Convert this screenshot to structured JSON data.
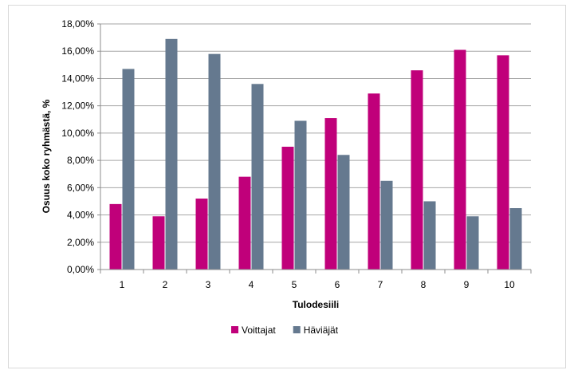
{
  "chart_data": {
    "type": "bar",
    "title": "",
    "xlabel": "Tulodesiili",
    "ylabel": "Osuus koko ryhmästä, %",
    "categories": [
      "1",
      "2",
      "3",
      "4",
      "5",
      "6",
      "7",
      "8",
      "9",
      "10"
    ],
    "series": [
      {
        "name": "Voittajat",
        "color": "#c0007a",
        "values": [
          4.8,
          3.9,
          5.2,
          6.8,
          9.0,
          11.1,
          12.9,
          14.6,
          16.1,
          15.7
        ]
      },
      {
        "name": "Häviäjät",
        "color": "#65798f",
        "values": [
          14.7,
          16.9,
          15.8,
          13.6,
          10.9,
          8.4,
          6.5,
          5.0,
          3.9,
          4.5
        ]
      }
    ],
    "ylim": [
      0,
      18
    ],
    "yticks": [
      0,
      2,
      4,
      6,
      8,
      10,
      12,
      14,
      16,
      18
    ],
    "ytick_labels": [
      "0,00%",
      "2,00%",
      "4,00%",
      "6,00%",
      "8,00%",
      "10,00%",
      "12,00%",
      "14,00%",
      "16,00%",
      "18,00%"
    ],
    "grid": true,
    "legend_position": "bottom"
  }
}
